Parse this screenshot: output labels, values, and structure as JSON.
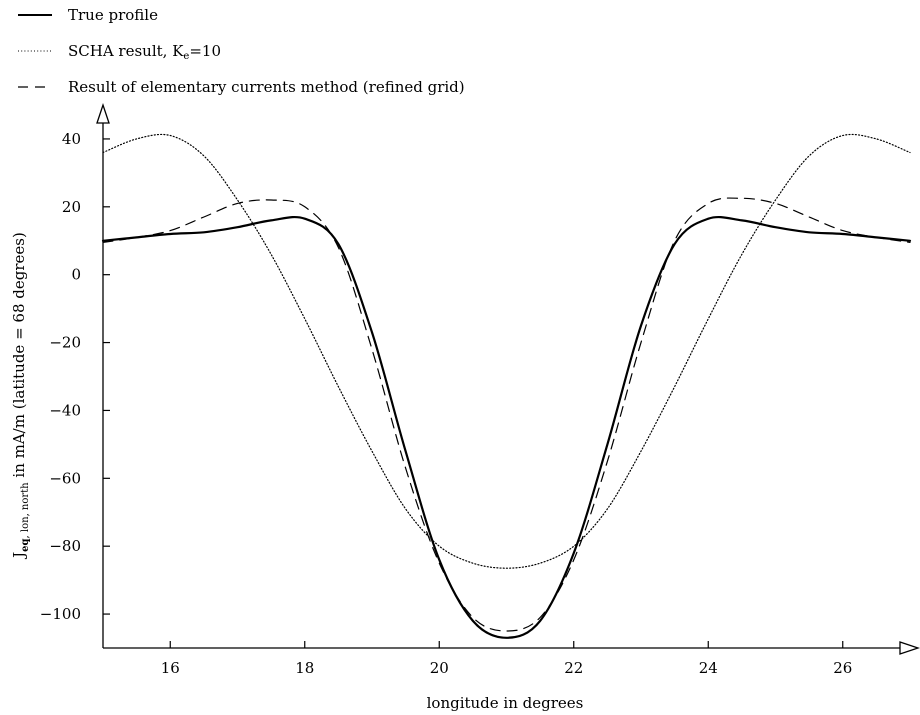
{
  "chart_data": {
    "type": "line",
    "xlabel": "longitude in degrees",
    "ylabel": {
      "main": "J",
      "sub1": "eq",
      "sep": ", ",
      "sub2": "lon, north",
      "rest": " in mA/m (latitude = 68 degrees)"
    },
    "xlim": [
      15,
      27
    ],
    "ylim": [
      -110,
      50
    ],
    "x_ticks": [
      16,
      18,
      20,
      22,
      24,
      26
    ],
    "y_ticks": [
      40,
      20,
      0,
      -20,
      -40,
      -60,
      -80,
      -100
    ],
    "x_tick_labels": [
      "16",
      "18",
      "20",
      "22",
      "24",
      "26"
    ],
    "y_tick_labels": [
      "40",
      "20",
      "0",
      "−20",
      "−40",
      "−60",
      "−80",
      "−100"
    ],
    "legend_position": "top-left",
    "grid": false,
    "series": [
      {
        "name": "True profile",
        "style": "solid",
        "x": [
          15,
          15.5,
          16,
          16.5,
          17,
          17.5,
          18,
          18.5,
          19,
          19.5,
          20,
          20.5,
          21,
          21.5,
          22,
          22.5,
          23,
          23.5,
          24,
          24.5,
          25,
          25.5,
          26,
          26.5,
          27
        ],
        "y": [
          10,
          11,
          12,
          12.5,
          14,
          16,
          16.5,
          9,
          -17,
          -52,
          -84,
          -102,
          -107,
          -102,
          -82,
          -50,
          -15,
          9,
          16.5,
          16,
          14,
          12.5,
          12,
          11,
          10
        ]
      },
      {
        "name": "SCHA result, K_e=10",
        "name_display": {
          "main": "SCHA result, K",
          "sub": "e",
          "rest": "=10"
        },
        "style": "dotted",
        "x": [
          15,
          15.5,
          16,
          16.5,
          17,
          17.5,
          18,
          18.5,
          19,
          19.5,
          20,
          20.5,
          21,
          21.5,
          22,
          22.5,
          23,
          23.5,
          24,
          24.5,
          25,
          25.5,
          26,
          26.5,
          27
        ],
        "y": [
          36,
          40,
          41,
          35,
          22,
          6,
          -13,
          -33,
          -52,
          -69,
          -80,
          -85,
          -86.5,
          -85,
          -80,
          -69,
          -52,
          -33,
          -13,
          6,
          22,
          35,
          41,
          40,
          36
        ]
      },
      {
        "name": "Result of elementary currents method (refined grid)",
        "style": "dashed",
        "x": [
          15,
          15.5,
          16,
          16.5,
          17,
          17.5,
          18,
          18.5,
          19,
          19.5,
          20,
          20.5,
          21,
          21.5,
          22,
          22.5,
          23,
          23.5,
          24,
          24.5,
          25,
          25.5,
          26,
          26.5,
          27
        ],
        "y": [
          9.5,
          11,
          13,
          17,
          21,
          22,
          20,
          8,
          -22,
          -57,
          -85,
          -101,
          -105,
          -101,
          -84,
          -55,
          -20,
          10,
          21,
          22.5,
          21,
          17,
          13,
          11,
          9.5
        ]
      }
    ]
  }
}
